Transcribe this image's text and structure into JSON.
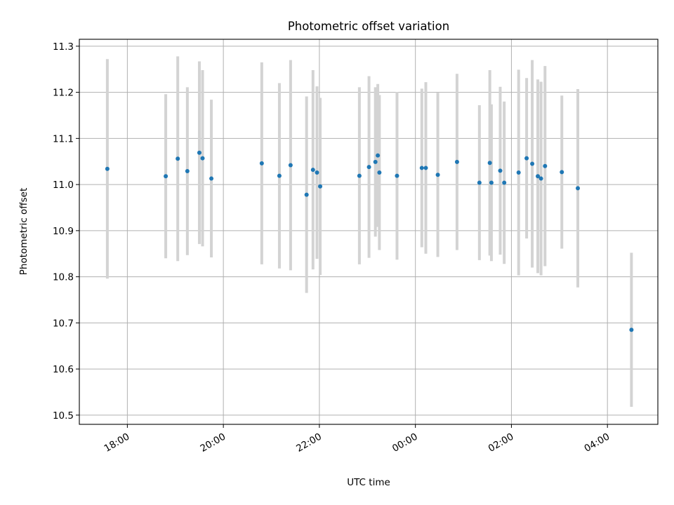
{
  "chart_data": {
    "type": "scatter",
    "title": "Photometric offset variation",
    "xlabel": "UTC time",
    "ylabel": "Photometric offset",
    "xlim": [
      "17:00",
      "05:03"
    ],
    "ylim": [
      10.48,
      11.315
    ],
    "grid": true,
    "legend": "none",
    "xticks": [
      "18:00",
      "20:00",
      "22:00",
      "00:00",
      "02:00",
      "04:00"
    ],
    "yticks": [
      "10.5",
      "10.6",
      "10.7",
      "10.8",
      "10.9",
      "11.0",
      "11.1",
      "11.2",
      "11.3"
    ],
    "colors": {
      "point": "#1f77b4",
      "errorbar": "#d3d3d3",
      "grid": "#b0b0b0"
    },
    "points": [
      {
        "x": "17:35",
        "y": 11.034,
        "err": 0.238
      },
      {
        "x": "18:48",
        "y": 11.018,
        "err": 0.178
      },
      {
        "x": "19:03",
        "y": 11.056,
        "err": 0.222
      },
      {
        "x": "19:15",
        "y": 11.029,
        "err": 0.182
      },
      {
        "x": "19:30",
        "y": 11.069,
        "err": 0.198
      },
      {
        "x": "19:34",
        "y": 11.057,
        "err": 0.191
      },
      {
        "x": "19:45",
        "y": 11.013,
        "err": 0.171
      },
      {
        "x": "20:48",
        "y": 11.046,
        "err": 0.219
      },
      {
        "x": "21:10",
        "y": 11.019,
        "err": 0.201
      },
      {
        "x": "21:24",
        "y": 11.042,
        "err": 0.228
      },
      {
        "x": "21:44",
        "y": 10.978,
        "err": 0.213
      },
      {
        "x": "21:52",
        "y": 11.032,
        "err": 0.216
      },
      {
        "x": "21:57",
        "y": 11.026,
        "err": 0.187
      },
      {
        "x": "22:01",
        "y": 10.996,
        "err": 0.192
      },
      {
        "x": "22:50",
        "y": 11.019,
        "err": 0.192
      },
      {
        "x": "23:02",
        "y": 11.038,
        "err": 0.197
      },
      {
        "x": "23:10",
        "y": 11.049,
        "err": 0.162
      },
      {
        "x": "23:13",
        "y": 11.063,
        "err": 0.155
      },
      {
        "x": "23:15",
        "y": 11.026,
        "err": 0.168
      },
      {
        "x": "23:37",
        "y": 11.019,
        "err": 0.182
      },
      {
        "x": "00:08",
        "y": 11.036,
        "err": 0.172
      },
      {
        "x": "00:13",
        "y": 11.036,
        "err": 0.186
      },
      {
        "x": "00:28",
        "y": 11.021,
        "err": 0.178
      },
      {
        "x": "00:52",
        "y": 11.049,
        "err": 0.191
      },
      {
        "x": "01:20",
        "y": 11.004,
        "err": 0.168
      },
      {
        "x": "01:33",
        "y": 11.047,
        "err": 0.201
      },
      {
        "x": "01:35",
        "y": 11.004,
        "err": 0.17
      },
      {
        "x": "01:46",
        "y": 11.03,
        "err": 0.182
      },
      {
        "x": "01:51",
        "y": 11.004,
        "err": 0.176
      },
      {
        "x": "02:09",
        "y": 11.026,
        "err": 0.223
      },
      {
        "x": "02:19",
        "y": 11.057,
        "err": 0.174
      },
      {
        "x": "02:26",
        "y": 11.045,
        "err": 0.225
      },
      {
        "x": "02:33",
        "y": 11.018,
        "err": 0.21
      },
      {
        "x": "02:37",
        "y": 11.013,
        "err": 0.21
      },
      {
        "x": "02:42",
        "y": 11.04,
        "err": 0.217
      },
      {
        "x": "03:03",
        "y": 11.027,
        "err": 0.166
      },
      {
        "x": "03:23",
        "y": 10.992,
        "err": 0.215
      },
      {
        "x": "04:30",
        "y": 10.685,
        "err": 0.167
      }
    ]
  }
}
